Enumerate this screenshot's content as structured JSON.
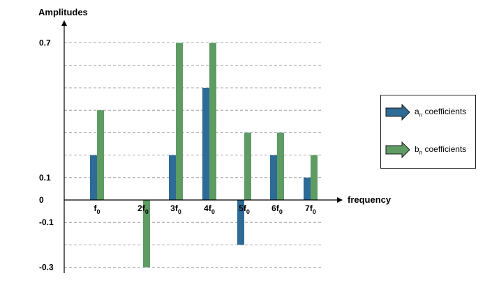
{
  "chart_data": {
    "type": "bar",
    "ylabel": "Amplitudes",
    "xlabel": "frequency",
    "ylim": [
      -0.3,
      0.7
    ],
    "ytick_labels": [
      {
        "value": 0.7,
        "label": "0.7"
      },
      {
        "value": 0.1,
        "label": "0.1"
      },
      {
        "value": 0,
        "label": "0"
      },
      {
        "value": -0.1,
        "label": "-0.1"
      },
      {
        "value": -0.3,
        "label": "-0.3"
      }
    ],
    "gridlines": [
      0.7,
      0.6,
      0.5,
      0.4,
      0.3,
      0.2,
      0.1,
      -0.1,
      -0.2,
      -0.3
    ],
    "grid": "horizontal-dashed",
    "categories": [
      {
        "coef": "",
        "sub": "0"
      },
      {
        "coef": "2",
        "sub": "0"
      },
      {
        "coef": "3",
        "sub": "0"
      },
      {
        "coef": "4",
        "sub": "0"
      },
      {
        "coef": "5",
        "sub": "0"
      },
      {
        "coef": "6",
        "sub": "0"
      },
      {
        "coef": "7",
        "sub": "0"
      }
    ],
    "category_symbol": "f",
    "series": [
      {
        "name": "a_n coefficients",
        "color": "#2e6b96",
        "values": [
          0.2,
          0,
          0.2,
          0.5,
          -0.2,
          0.2,
          0.1
        ]
      },
      {
        "name": "b_n coefficients",
        "color": "#5e9c63",
        "values": [
          0.4,
          -0.3,
          0.7,
          0.7,
          0.3,
          0.3,
          0.2
        ]
      }
    ],
    "legend_position": "right"
  },
  "legend": {
    "items": [
      {
        "base": "a",
        "sub": "n",
        "text": " coefficients",
        "color": "#2e6b96"
      },
      {
        "base": "b",
        "sub": "n",
        "text": " coefficients",
        "color": "#5e9c63"
      }
    ]
  }
}
